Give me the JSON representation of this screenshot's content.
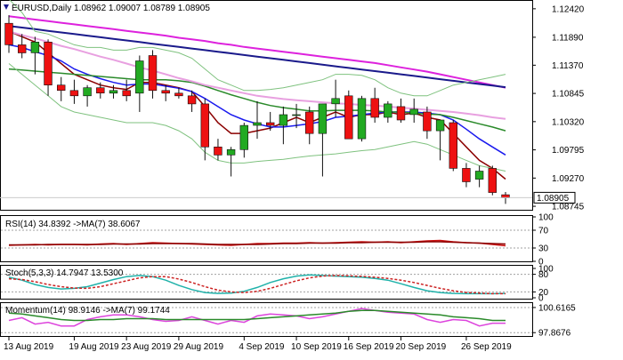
{
  "main_panel": {
    "symbol_icon": "arrow-down-icon",
    "header_text": "EURUSD,Daily  1.08962 1.09007 1.08789 1.08905",
    "price_ticks": [
      "1.12420",
      "1.11890",
      "1.11370",
      "1.10845",
      "1.10320",
      "1.09795",
      "1.09270",
      "1.08745"
    ],
    "current_price": "1.08905"
  },
  "rsi_panel": {
    "header_text": "RSI(14) 34.8392  ->MA(7) 38.6067",
    "ticks": [
      "100",
      "70",
      "30",
      "0"
    ]
  },
  "stoch_panel": {
    "header_text": "Stoch(5,3,3) 14.7947 13.5300",
    "ticks": [
      "100",
      "80",
      "20",
      "0"
    ]
  },
  "momentum_panel": {
    "header_text": "Momentum(14) 98.9146  ->MA(7) 99.1744",
    "ticks": [
      "100.6165",
      "97.8676"
    ]
  },
  "time_axis": [
    "13 Aug 2019",
    "19 Aug 2019",
    "23 Aug 2019",
    "29 Aug 2019",
    "4 Sep 2019",
    "10 Sep 2019",
    "16 Sep 2019",
    "20 Sep 2019",
    "26 Sep 2019"
  ],
  "colors": {
    "bull": "#22aa22",
    "bear": "#ee1111",
    "wick": "#111111",
    "ma_dark": "#8b0000",
    "ma_blue": "#1a1aee",
    "ma_green": "#2a8a2a",
    "ma_pink": "#e8a0e0",
    "ma_magenta": "#dd22dd",
    "ma_navy": "#1a1a8b",
    "bollinger": "#7fc27f",
    "trendline": "#1a1a8b",
    "rsi_line": "#cc1111",
    "rsi_ma": "#8b0000",
    "stoch_main": "#20b2aa",
    "stoch_signal": "#cc2222",
    "mom_line": "#dd44dd",
    "mom_ma": "#2a8a2a",
    "price_box": "#ffffff",
    "grid_level": "#a0a0a0"
  },
  "chart_data": [
    {
      "type": "candlestick",
      "title": "EURUSD,Daily",
      "ohlc_header": [
        1.08962,
        1.09007,
        1.08789,
        1.08905
      ],
      "ylim": [
        1.0868,
        1.1255
      ],
      "x_labels": [
        "13 Aug 2019",
        "19 Aug 2019",
        "23 Aug 2019",
        "29 Aug 2019",
        "4 Sep 2019",
        "10 Sep 2019",
        "16 Sep 2019",
        "20 Sep 2019",
        "26 Sep 2019"
      ],
      "candles": [
        {
          "o": 1.1215,
          "h": 1.123,
          "l": 1.116,
          "c": 1.1175
        },
        {
          "o": 1.1175,
          "h": 1.1195,
          "l": 1.115,
          "c": 1.116
        },
        {
          "o": 1.116,
          "h": 1.119,
          "l": 1.112,
          "c": 1.118
        },
        {
          "o": 1.118,
          "h": 1.1185,
          "l": 1.108,
          "c": 1.11
        },
        {
          "o": 1.11,
          "h": 1.1115,
          "l": 1.107,
          "c": 1.109
        },
        {
          "o": 1.109,
          "h": 1.111,
          "l": 1.1065,
          "c": 1.108
        },
        {
          "o": 1.108,
          "h": 1.11,
          "l": 1.106,
          "c": 1.1095
        },
        {
          "o": 1.1095,
          "h": 1.1105,
          "l": 1.1075,
          "c": 1.1085
        },
        {
          "o": 1.1085,
          "h": 1.11,
          "l": 1.1075,
          "c": 1.109
        },
        {
          "o": 1.109,
          "h": 1.111,
          "l": 1.107,
          "c": 1.108
        },
        {
          "o": 1.1085,
          "h": 1.1155,
          "l": 1.105,
          "c": 1.1145
        },
        {
          "o": 1.1155,
          "h": 1.1165,
          "l": 1.1075,
          "c": 1.109
        },
        {
          "o": 1.109,
          "h": 1.11,
          "l": 1.107,
          "c": 1.1085
        },
        {
          "o": 1.1085,
          "h": 1.1095,
          "l": 1.1075,
          "c": 1.108
        },
        {
          "o": 1.108,
          "h": 1.109,
          "l": 1.105,
          "c": 1.1065
        },
        {
          "o": 1.1065,
          "h": 1.1075,
          "l": 1.096,
          "c": 1.0985
        },
        {
          "o": 1.0985,
          "h": 1.1,
          "l": 1.096,
          "c": 1.097
        },
        {
          "o": 1.097,
          "h": 1.0985,
          "l": 1.093,
          "c": 1.098
        },
        {
          "o": 1.098,
          "h": 1.103,
          "l": 1.0965,
          "c": 1.1025
        },
        {
          "o": 1.1025,
          "h": 1.107,
          "l": 1.1,
          "c": 1.103
        },
        {
          "o": 1.103,
          "h": 1.105,
          "l": 1.1015,
          "c": 1.1025
        },
        {
          "o": 1.1025,
          "h": 1.106,
          "l": 1.099,
          "c": 1.1045
        },
        {
          "o": 1.1045,
          "h": 1.1065,
          "l": 1.102,
          "c": 1.1045
        },
        {
          "o": 1.105,
          "h": 1.106,
          "l": 1.099,
          "c": 1.101
        },
        {
          "o": 1.101,
          "h": 1.1065,
          "l": 1.093,
          "c": 1.1065
        },
        {
          "o": 1.1065,
          "h": 1.111,
          "l": 1.104,
          "c": 1.1075
        },
        {
          "o": 1.108,
          "h": 1.109,
          "l": 1.1,
          "c": 1.1
        },
        {
          "o": 1.1,
          "h": 1.108,
          "l": 1.0995,
          "c": 1.1075
        },
        {
          "o": 1.1075,
          "h": 1.1095,
          "l": 1.103,
          "c": 1.104
        },
        {
          "o": 1.104,
          "h": 1.107,
          "l": 1.103,
          "c": 1.1065
        },
        {
          "o": 1.106,
          "h": 1.1075,
          "l": 1.103,
          "c": 1.1035
        },
        {
          "o": 1.1045,
          "h": 1.1075,
          "l": 1.103,
          "c": 1.1055
        },
        {
          "o": 1.105,
          "h": 1.106,
          "l": 1.1,
          "c": 1.1015
        },
        {
          "o": 1.1015,
          "h": 1.1035,
          "l": 1.096,
          "c": 1.1035
        },
        {
          "o": 1.103,
          "h": 1.1035,
          "l": 1.094,
          "c": 1.0945
        },
        {
          "o": 1.0945,
          "h": 1.0955,
          "l": 1.091,
          "c": 1.092
        },
        {
          "o": 1.0925,
          "h": 1.095,
          "l": 1.091,
          "c": 1.094
        },
        {
          "o": 1.0945,
          "h": 1.095,
          "l": 1.0895,
          "c": 1.09
        },
        {
          "o": 1.0896,
          "h": 1.0901,
          "l": 1.0879,
          "c": 1.089
        }
      ],
      "series": [
        {
          "values": [
            1.12,
            1.119,
            1.118,
            1.116,
            1.114,
            1.112,
            1.111,
            1.11,
            1.1095,
            1.1092,
            1.1105,
            1.1105,
            1.11,
            1.1095,
            1.1088,
            1.106,
            1.103,
            1.101,
            1.101,
            1.1015,
            1.102,
            1.103,
            1.104,
            1.103,
            1.104,
            1.105,
            1.104,
            1.1045,
            1.1045,
            1.105,
            1.1045,
            1.1048,
            1.104,
            1.1035,
            1.101,
            1.0985,
            1.096,
            1.0945,
            1.0925
          ]
        },
        {
          "values": [
            1.1175,
            1.117,
            1.1162,
            1.1155,
            1.1145,
            1.113,
            1.112,
            1.1112,
            1.1105,
            1.11,
            1.1102,
            1.1102,
            1.1098,
            1.1094,
            1.1088,
            1.1075,
            1.106,
            1.1045,
            1.1035,
            1.1028,
            1.1022,
            1.1022,
            1.1025,
            1.1028,
            1.1032,
            1.104,
            1.1042,
            1.1045,
            1.1048,
            1.105,
            1.105,
            1.105,
            1.1048,
            1.1045,
            1.1035,
            1.1018,
            1.1,
            1.0985,
            1.097
          ]
        },
        {
          "values": [
            1.113,
            1.1128,
            1.1126,
            1.1124,
            1.1122,
            1.112,
            1.1118,
            1.1116,
            1.1114,
            1.1112,
            1.111,
            1.111,
            1.111,
            1.1108,
            1.1105,
            1.1098,
            1.109,
            1.1082,
            1.1075,
            1.1068,
            1.1062,
            1.1058,
            1.1055,
            1.1052,
            1.1052,
            1.1053,
            1.1053,
            1.1053,
            1.1052,
            1.105,
            1.105,
            1.1048,
            1.1046,
            1.1045,
            1.104,
            1.1034,
            1.1028,
            1.1022,
            1.1015
          ]
        },
        {
          "values": [
            1.12,
            1.1193,
            1.1187,
            1.118,
            1.1173,
            1.1167,
            1.116,
            1.1153,
            1.1147,
            1.114,
            1.1133,
            1.1127,
            1.112,
            1.1113,
            1.1107,
            1.11,
            1.1095,
            1.109,
            1.1085,
            1.108,
            1.1077,
            1.1074,
            1.1072,
            1.107,
            1.1068,
            1.1066,
            1.1065,
            1.1063,
            1.1062,
            1.106,
            1.1058,
            1.1056,
            1.1054,
            1.1052,
            1.105,
            1.1047,
            1.1044,
            1.104,
            1.1037
          ]
        },
        {
          "values": [
            1.1228,
            1.1225,
            1.1222,
            1.1219,
            1.1216,
            1.1213,
            1.121,
            1.1207,
            1.1204,
            1.1201,
            1.1198,
            1.1195,
            1.1192,
            1.1188,
            1.1185,
            1.1182,
            1.1178,
            1.1175,
            1.1171,
            1.1168,
            1.1165,
            1.1162,
            1.1159,
            1.1156,
            1.1153,
            1.115,
            1.1147,
            1.1144,
            1.1141,
            1.1137,
            1.1133,
            1.1129,
            1.1125,
            1.112,
            1.1115,
            1.111,
            1.1105,
            1.11,
            1.1095
          ]
        },
        {
          "values": [
            1.121,
            1.1207,
            1.1204,
            1.1201,
            1.1198,
            1.1195,
            1.1192,
            1.1189,
            1.1186,
            1.1183,
            1.118,
            1.1177,
            1.1174,
            1.1171,
            1.1168,
            1.1165,
            1.1162,
            1.1159,
            1.1156,
            1.1153,
            1.115,
            1.1147,
            1.1144,
            1.1141,
            1.1138,
            1.1135,
            1.1132,
            1.1129,
            1.1126,
            1.1123,
            1.112,
            1.1117,
            1.1114,
            1.1111,
            1.1108,
            1.1105,
            1.1102,
            1.1099,
            1.1096
          ]
        },
        {
          "values": [
            1.126,
            1.1235,
            1.12,
            1.1195,
            1.1185,
            1.1175,
            1.117,
            1.117,
            1.1165,
            1.1165,
            1.117,
            1.117,
            1.1165,
            1.116,
            1.115,
            1.113,
            1.111,
            1.11,
            1.109,
            1.109,
            1.1092,
            1.1095,
            1.11,
            1.1105,
            1.111,
            1.112,
            1.112,
            1.1118,
            1.111,
            1.1095,
            1.1085,
            1.108,
            1.108,
            1.109,
            1.11,
            1.1105,
            1.111,
            1.1115,
            1.112
          ]
        },
        {
          "values": [
            1.114,
            1.112,
            1.11,
            1.108,
            1.106,
            1.105,
            1.1045,
            1.104,
            1.1035,
            1.103,
            1.103,
            1.103,
            1.1025,
            1.1015,
            1.1,
            1.0975,
            1.096,
            1.0955,
            1.0955,
            1.0958,
            1.096,
            1.0962,
            1.0965,
            1.0968,
            1.097,
            1.0972,
            1.0975,
            1.0978,
            1.098,
            1.0985,
            1.099,
            1.0995,
            1.099,
            1.098,
            1.097,
            1.096,
            1.095,
            1.0945,
            1.094
          ]
        }
      ]
    },
    {
      "type": "line",
      "title": "RSI(14) 34.8392  ->MA(7) 38.6067",
      "ylim": [
        0,
        100
      ],
      "levels": [
        70,
        30
      ],
      "series": [
        {
          "values": [
            36,
            37,
            38,
            37,
            38,
            38,
            37,
            39,
            40,
            38,
            40,
            42,
            41,
            40,
            39,
            38,
            37,
            36,
            38,
            40,
            40,
            41,
            41,
            42,
            41,
            42,
            43,
            44,
            43,
            44,
            42,
            44,
            46,
            47,
            44,
            42,
            41,
            38,
            35
          ]
        },
        {
          "values": [
            37,
            37,
            37,
            38,
            38,
            38,
            38,
            38,
            39,
            39,
            39,
            40,
            40,
            40,
            40,
            39,
            38,
            38,
            38,
            38,
            39,
            40,
            40,
            41,
            41,
            41,
            42,
            42,
            43,
            43,
            43,
            43,
            44,
            44,
            43,
            42,
            41,
            40,
            39
          ]
        }
      ]
    },
    {
      "type": "line",
      "title": "Stoch(5,3,3) 14.7947 13.5300",
      "ylim": [
        0,
        100
      ],
      "levels": [
        80,
        20
      ],
      "series": [
        {
          "values": [
            70,
            60,
            45,
            35,
            30,
            32,
            38,
            50,
            62,
            72,
            76,
            72,
            60,
            42,
            28,
            18,
            15,
            16,
            22,
            35,
            52,
            65,
            74,
            78,
            76,
            74,
            72,
            70,
            66,
            60,
            48,
            35,
            24,
            18,
            15,
            14,
            14,
            14,
            15
          ]
        },
        {
          "values": [
            65,
            62,
            55,
            45,
            38,
            33,
            32,
            38,
            48,
            58,
            68,
            72,
            72,
            64,
            52,
            38,
            26,
            20,
            18,
            22,
            32,
            45,
            58,
            68,
            74,
            76,
            75,
            73,
            70,
            66,
            60,
            52,
            42,
            32,
            24,
            18,
            16,
            14,
            14
          ]
        }
      ]
    },
    {
      "type": "line",
      "title": "Momentum(14) 98.9146  ->MA(7) 99.1744",
      "ylim": [
        97.5,
        101.0
      ],
      "levels": [
        100.6165,
        97.8676
      ],
      "series": [
        {
          "values": [
            99.2,
            99.5,
            98.8,
            99.0,
            98.6,
            98.6,
            99.3,
            99.6,
            99.8,
            99.8,
            99.6,
            99.3,
            99.1,
            99.2,
            99.6,
            99.2,
            98.8,
            99.2,
            99.0,
            99.7,
            99.9,
            99.8,
            99.7,
            99.4,
            99.6,
            99.9,
            100.2,
            100.5,
            100.3,
            100.1,
            100.0,
            99.9,
            99.3,
            99.0,
            99.3,
            99.2,
            98.6,
            98.9,
            98.9
          ]
        },
        {
          "values": [
            100.0,
            99.9,
            99.7,
            99.5,
            99.3,
            99.2,
            99.2,
            99.3,
            99.3,
            99.4,
            99.4,
            99.4,
            99.3,
            99.3,
            99.3,
            99.3,
            99.3,
            99.3,
            99.3,
            99.4,
            99.5,
            99.6,
            99.7,
            99.8,
            99.9,
            100.0,
            100.2,
            100.3,
            100.3,
            100.2,
            100.1,
            100.0,
            99.9,
            99.8,
            99.6,
            99.5,
            99.4,
            99.2,
            99.2
          ]
        }
      ]
    }
  ]
}
